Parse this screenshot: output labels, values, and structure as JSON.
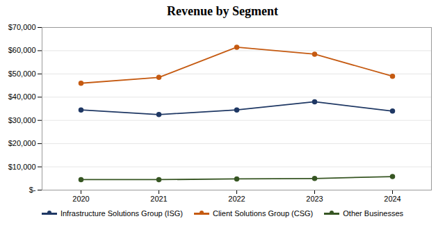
{
  "chart_data": {
    "type": "line",
    "title": "Revenue by Segment",
    "x": [
      2020,
      2021,
      2022,
      2023,
      2024
    ],
    "series": [
      {
        "name": "Infrastructure Solutions Group (ISG)",
        "color": "#1f3864",
        "values": [
          34500,
          32500,
          34500,
          38000,
          34000
        ]
      },
      {
        "name": "Client Solutions Group (CSG)",
        "color": "#c55a11",
        "values": [
          46000,
          48500,
          61500,
          58500,
          49000
        ]
      },
      {
        "name": "Other Businesses",
        "color": "#375623",
        "values": [
          4500,
          4500,
          4800,
          5000,
          5800
        ]
      }
    ],
    "xlim": [
      2019.5,
      2024.5
    ],
    "xticks": [
      2020,
      2021,
      2022,
      2023,
      2024
    ],
    "ylim": [
      0,
      70000
    ],
    "yticks": [
      {
        "value": 0,
        "label": "$-"
      },
      {
        "value": 10000,
        "label": "$10,000"
      },
      {
        "value": 20000,
        "label": "$20,000"
      },
      {
        "value": 30000,
        "label": "$30,000"
      },
      {
        "value": 40000,
        "label": "$40,000"
      },
      {
        "value": 50000,
        "label": "$50,000"
      },
      {
        "value": 60000,
        "label": "$60,000"
      },
      {
        "value": 70000,
        "label": "$70,000"
      }
    ],
    "grid": true,
    "legend": "bottom",
    "marker": "circle"
  }
}
